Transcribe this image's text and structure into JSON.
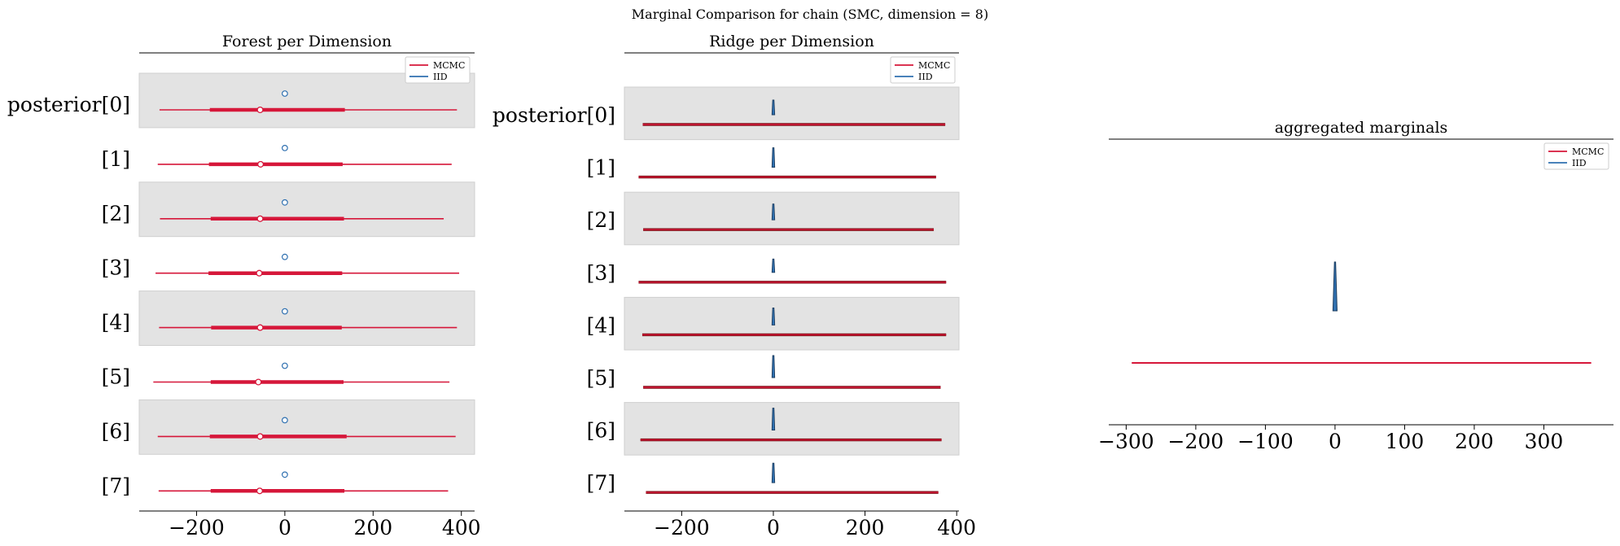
{
  "suptitle": "Marginal Comparison for chain (SMC, dimension = 8)",
  "colors": {
    "mcmc": "#d6173a",
    "iid": "#2f70b0",
    "band": "#e3e3e3",
    "ridge_line": "#7a0d12"
  },
  "legend": {
    "mcmc": "MCMC",
    "iid": "IID"
  },
  "chart_data": [
    {
      "type": "forest",
      "title": "Forest per Dimension",
      "categories": [
        "posterior[0]",
        "[1]",
        "[2]",
        "[3]",
        "[4]",
        "[5]",
        "[6]",
        "[7]"
      ],
      "xlim": [
        -330,
        430
      ],
      "xticks": [
        -200,
        0,
        200,
        400
      ],
      "xtick_labels": [
        "−200",
        "0",
        "200",
        "400"
      ],
      "legend_position": "top-right",
      "series": [
        {
          "name": "MCMC",
          "median": [
            -56,
            -55,
            -56,
            -58,
            -56,
            -60,
            -56,
            -57
          ],
          "hdi_50": [
            [
              -170,
              136
            ],
            [
              -172,
              131
            ],
            [
              -168,
              134
            ],
            [
              -173,
              130
            ],
            [
              -167,
              129
            ],
            [
              -168,
              133
            ],
            [
              -170,
              140
            ],
            [
              -168,
              135
            ]
          ],
          "hdi_94": [
            [
              -284,
              390
            ],
            [
              -288,
              378
            ],
            [
              -283,
              360
            ],
            [
              -293,
              395
            ],
            [
              -285,
              390
            ],
            [
              -298,
              373
            ],
            [
              -288,
              387
            ],
            [
              -286,
              370
            ]
          ]
        },
        {
          "name": "IID",
          "median": [
            0,
            0,
            0,
            0,
            0,
            0,
            0,
            0
          ],
          "hdi_94": [
            [
              -2,
              2
            ],
            [
              -2,
              2
            ],
            [
              -2,
              2
            ],
            [
              -2,
              2
            ],
            [
              -2,
              2
            ],
            [
              -2,
              2
            ],
            [
              -2,
              2
            ],
            [
              -2,
              2
            ]
          ]
        }
      ]
    },
    {
      "type": "ridge",
      "title": "Ridge per Dimension",
      "categories": [
        "posterior[0]",
        "[1]",
        "[2]",
        "[3]",
        "[4]",
        "[5]",
        "[6]",
        "[7]"
      ],
      "xlim": [
        -325,
        405
      ],
      "xticks": [
        -200,
        0,
        200,
        400
      ],
      "xtick_labels": [
        "−200",
        "0",
        "200",
        "400"
      ],
      "legend_position": "top-right",
      "series": [
        {
          "name": "MCMC",
          "range": [
            [
              -285,
              375
            ],
            [
              -294,
              355
            ],
            [
              -284,
              350
            ],
            [
              -294,
              377
            ],
            [
              -286,
              377
            ],
            [
              -284,
              365
            ],
            [
              -290,
              367
            ],
            [
              -278,
              360
            ]
          ]
        },
        {
          "name": "IID",
          "range": [
            [
              -3,
              3
            ],
            [
              -3,
              3
            ],
            [
              -3,
              3
            ],
            [
              -3,
              3
            ],
            [
              -3,
              3
            ],
            [
              -3,
              3
            ],
            [
              -3,
              3
            ],
            [
              -3,
              3
            ]
          ],
          "peak_height": [
            0.6,
            0.8,
            0.65,
            0.55,
            0.7,
            0.9,
            0.9,
            0.8
          ]
        }
      ]
    },
    {
      "type": "density",
      "title": "aggregated marginals",
      "xlim": [
        -325,
        400
      ],
      "xticks": [
        -300,
        -200,
        -100,
        0,
        100,
        200,
        300
      ],
      "xtick_labels": [
        "−300",
        "−200",
        "−100",
        "0",
        "100",
        "200",
        "300"
      ],
      "legend_position": "top-right",
      "series": [
        {
          "name": "MCMC",
          "range": [
            -292,
            368
          ],
          "peak_density": 0.0015
        },
        {
          "name": "IID",
          "range": [
            -3,
            3
          ],
          "peak_density": 0.44
        }
      ]
    }
  ]
}
